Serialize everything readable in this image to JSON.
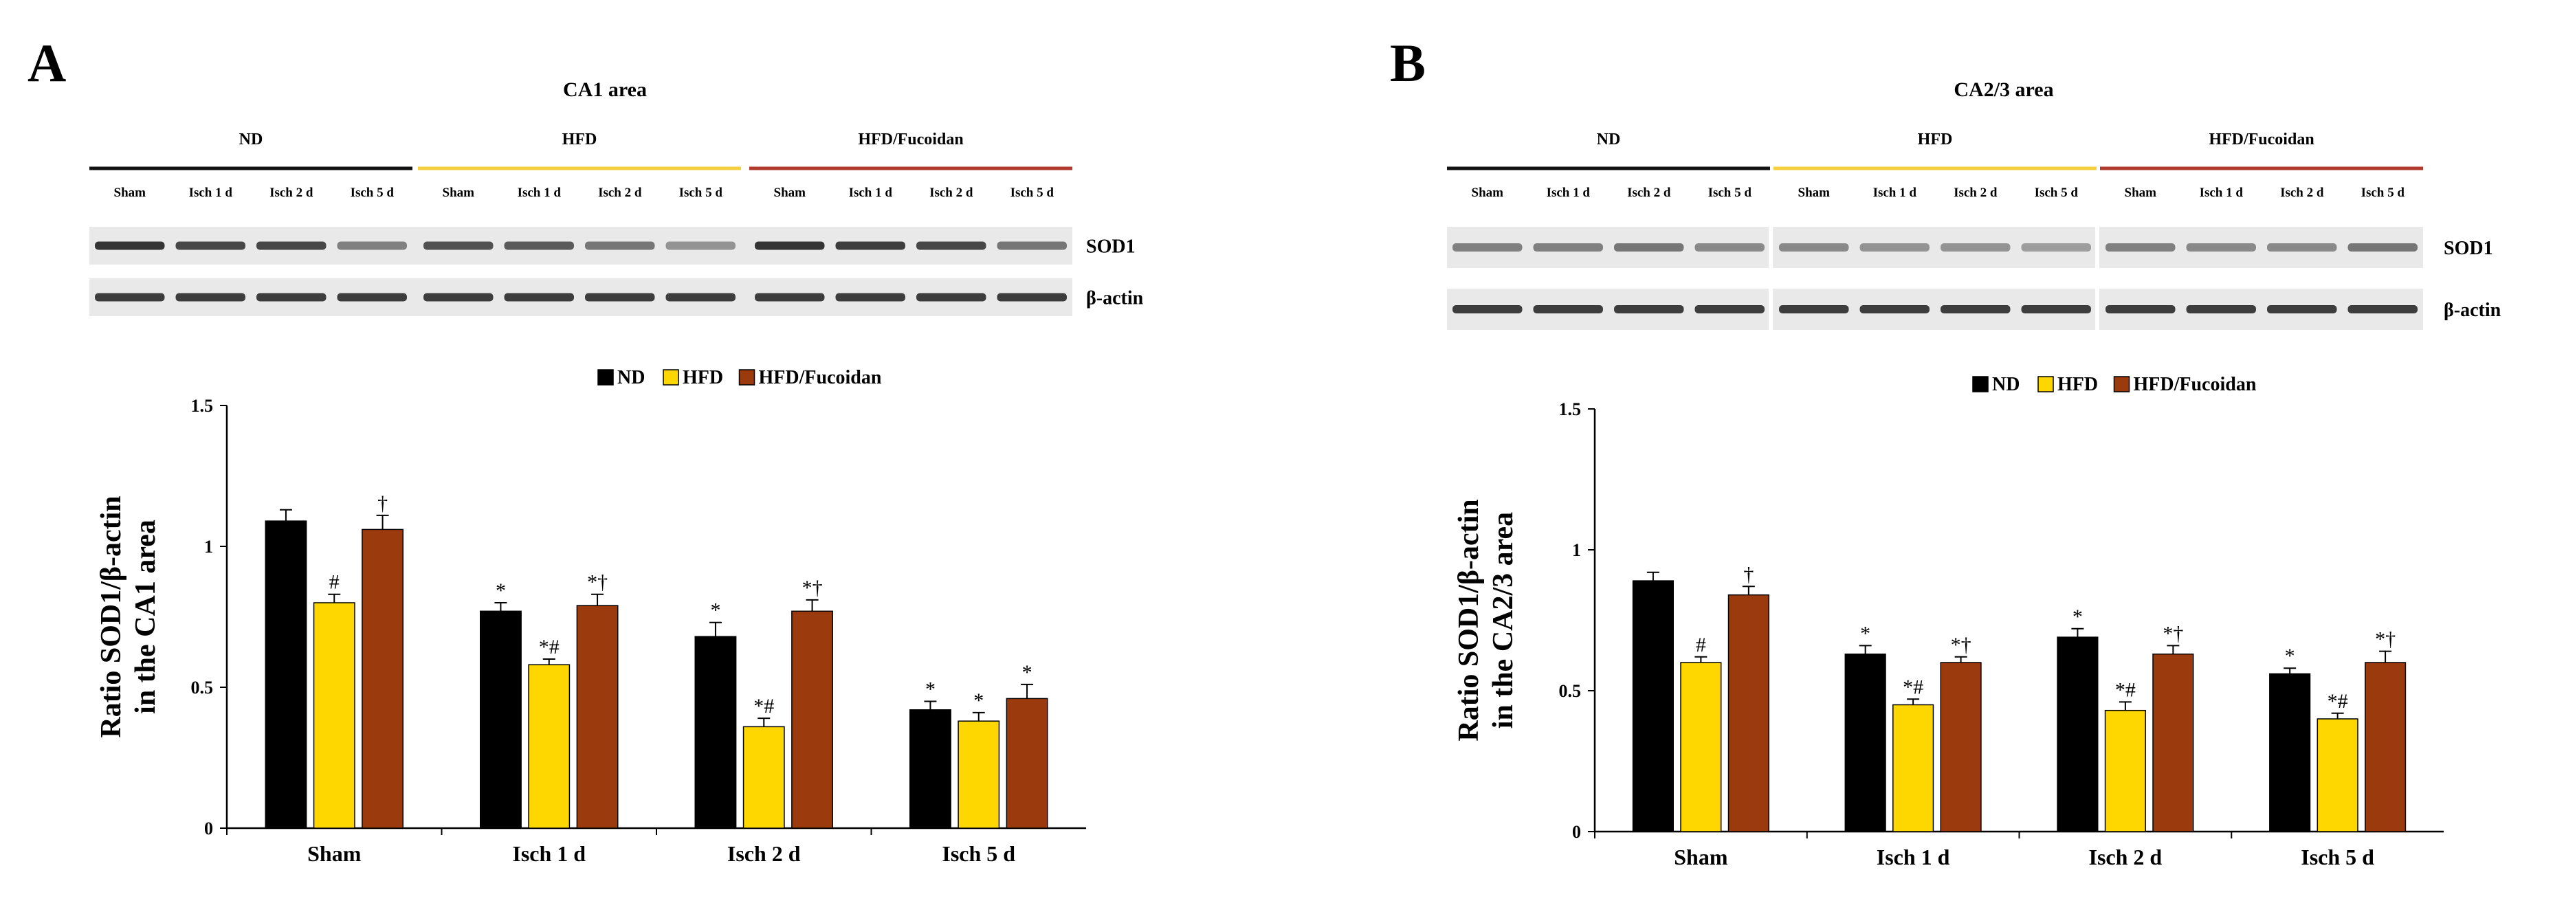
{
  "colors": {
    "ND": "#000000",
    "HFD": "#FFD700",
    "HFD/Fucoidan": "#9B3A0C",
    "line_ND": "#111111",
    "line_HFD": "#F4D03F",
    "line_HFD/Fucoidan": "#B03A2E",
    "band": "#2a2a2a",
    "blot_bg": "#e9e9e9"
  },
  "chart_data": [
    {
      "panel_label": "A",
      "type": "bar",
      "title": "CA1 area",
      "groups": [
        "ND",
        "HFD",
        "HFD/Fucoidan"
      ],
      "lane_labels": [
        "Sham",
        "Isch 1 d",
        "Isch 2 d",
        "Isch 5 d"
      ],
      "blot_labels": [
        "SOD1",
        "β-actin"
      ],
      "legend": [
        "ND",
        "HFD",
        "HFD/Fucoidan"
      ],
      "ylabel_lines": [
        "Ratio SOD1/β-actin",
        "in the CA1 area"
      ],
      "ylim": [
        0,
        1.5
      ],
      "yticks": [
        "0",
        "0.5",
        "1",
        "1.5"
      ],
      "categories": [
        "Sham",
        "Isch 1 d",
        "Isch 2 d",
        "Isch 5 d"
      ],
      "series": [
        {
          "name": "ND",
          "values": [
            1.09,
            0.77,
            0.68,
            0.42
          ],
          "errors": [
            0.04,
            0.03,
            0.05,
            0.03
          ],
          "annotations": [
            "",
            "*",
            "*",
            "*"
          ]
        },
        {
          "name": "HFD",
          "values": [
            0.8,
            0.58,
            0.36,
            0.38
          ],
          "errors": [
            0.03,
            0.02,
            0.03,
            0.03
          ],
          "annotations": [
            "#",
            "*#",
            "*#",
            "*"
          ]
        },
        {
          "name": "HFD/Fucoidan",
          "values": [
            1.06,
            0.79,
            0.77,
            0.46
          ],
          "errors": [
            0.05,
            0.04,
            0.04,
            0.05
          ],
          "annotations": [
            "†",
            "*†",
            "*†",
            "*"
          ]
        }
      ]
    },
    {
      "panel_label": "B",
      "type": "bar",
      "title": "CA2/3 area",
      "groups": [
        "ND",
        "HFD",
        "HFD/Fucoidan"
      ],
      "lane_labels": [
        "Sham",
        "Isch 1 d",
        "Isch 2 d",
        "Isch 5 d"
      ],
      "blot_labels": [
        "SOD1",
        "β-actin"
      ],
      "legend": [
        "ND",
        "HFD",
        "HFD/Fucoidan"
      ],
      "ylabel_lines": [
        "Ratio SOD1/β-actin",
        "in the CA2/3 area"
      ],
      "ylim": [
        0,
        1.5
      ],
      "yticks": [
        "0",
        "0.5",
        "1",
        "1.5"
      ],
      "categories": [
        "Sham",
        "Isch 1 d",
        "Isch 2 d",
        "Isch 5 d"
      ],
      "series": [
        {
          "name": "ND",
          "values": [
            0.89,
            0.63,
            0.69,
            0.56
          ],
          "errors": [
            0.03,
            0.03,
            0.03,
            0.02
          ],
          "annotations": [
            "",
            "*",
            "*",
            "*"
          ]
        },
        {
          "name": "HFD",
          "values": [
            0.6,
            0.45,
            0.43,
            0.4
          ],
          "errors": [
            0.02,
            0.02,
            0.03,
            0.02
          ],
          "annotations": [
            "#",
            "*#",
            "*#",
            "*#"
          ]
        },
        {
          "name": "HFD/Fucoidan",
          "values": [
            0.84,
            0.6,
            0.63,
            0.6
          ],
          "errors": [
            0.03,
            0.02,
            0.03,
            0.04
          ],
          "annotations": [
            "†",
            "*†",
            "*†",
            "*†"
          ]
        }
      ]
    }
  ]
}
